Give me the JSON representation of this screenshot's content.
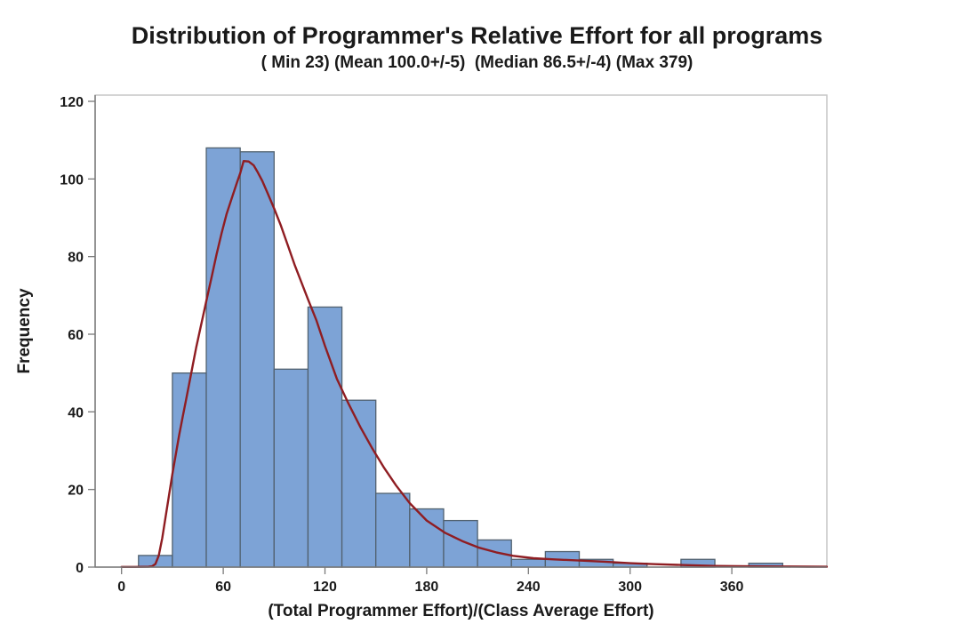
{
  "chart": {
    "title": "Distribution of Programmer's Relative Effort for all programs",
    "subtitle": "( Min 23) (Mean 100.0+/-5)  (Median 86.5+/-4) (Max 379)"
  },
  "chart_data": {
    "type": "bar",
    "subtype": "histogram_with_fit_curve",
    "title": "Distribution of Programmer's Relative Effort for all programs",
    "subtitle": "( Min 23) (Mean 100.0+/-5)  (Median 86.5+/-4) (Max 379)",
    "xlabel": "(Total Programmer Effort)/(Class Average Effort)",
    "ylabel": "Frequency",
    "bin_width": 20,
    "bin_centers": [
      20,
      40,
      60,
      80,
      100,
      120,
      140,
      160,
      180,
      200,
      220,
      240,
      260,
      280,
      300,
      320,
      340,
      360,
      380
    ],
    "counts": [
      3,
      50,
      108,
      107,
      51,
      67,
      43,
      19,
      15,
      12,
      7,
      2,
      4,
      2,
      1,
      0,
      2,
      0,
      1
    ],
    "x_ticks": [
      0,
      60,
      120,
      180,
      240,
      300,
      360
    ],
    "y_ticks": [
      0,
      20,
      40,
      60,
      80,
      100,
      120
    ],
    "xlim": [
      -15.7,
      416
    ],
    "ylim": [
      0,
      120
    ],
    "grid": false,
    "legend": "none",
    "fit_curve": {
      "label": "lognormal-fit-curve",
      "x": [
        0,
        8,
        16,
        18,
        20,
        22,
        24,
        26,
        28,
        30,
        32,
        34,
        36,
        38,
        40,
        42,
        44,
        46,
        48,
        50,
        53,
        56,
        59,
        62,
        65,
        68,
        70,
        72,
        75,
        78,
        80,
        83,
        86,
        90,
        94,
        98,
        102,
        106,
        110,
        115,
        120,
        127,
        134,
        141,
        148,
        155,
        162,
        170,
        180,
        191,
        201,
        211,
        221,
        231,
        243,
        255,
        270,
        285,
        300,
        315,
        330,
        350,
        370,
        390,
        405,
        416
      ],
      "y": [
        0.05,
        0.05,
        0.1,
        0.2,
        0.8,
        3,
        7.5,
        13,
        18.5,
        24,
        29,
        34,
        38.5,
        43,
        47.5,
        52,
        56.5,
        60.5,
        64.5,
        68.5,
        74.5,
        80.5,
        86,
        91,
        95,
        99,
        101.5,
        104.6,
        104.5,
        103.5,
        102,
        99.5,
        96.5,
        92.4,
        88,
        83,
        78,
        73.5,
        69,
        63.5,
        57,
        48.5,
        42,
        36,
        30.5,
        25.5,
        21,
        16.5,
        12,
        8.8,
        6.7,
        5.0,
        3.8,
        2.9,
        2.3,
        2.0,
        1.7,
        1.4,
        1.0,
        0.75,
        0.55,
        0.3,
        0.2,
        0.15,
        0.12,
        0.1
      ]
    },
    "colors": {
      "bar_fill": "#7DA3D6",
      "bar_border": "#51616F",
      "curve": "#8F1D22",
      "frame": "#C6C6C6",
      "axis": "#7A7A7A",
      "text": "#1A1A1A",
      "background": "#FFFFFF"
    }
  }
}
